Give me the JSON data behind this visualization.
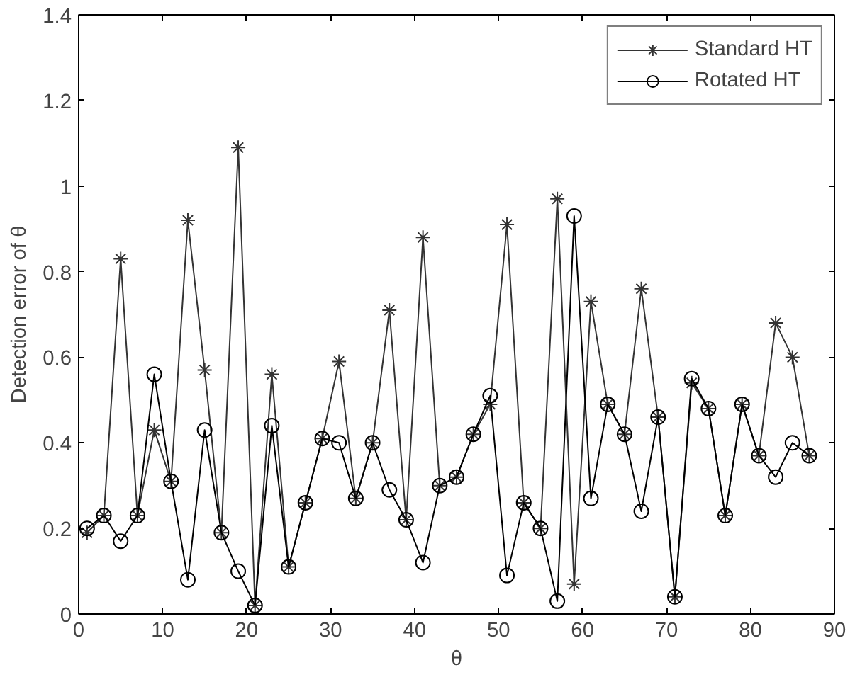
{
  "chart_data": {
    "type": "line",
    "xlabel": "θ",
    "ylabel": "Detection error of θ",
    "x": [
      1,
      3,
      5,
      7,
      9,
      11,
      13,
      15,
      17,
      19,
      21,
      23,
      25,
      27,
      29,
      31,
      33,
      35,
      37,
      39,
      41,
      43,
      45,
      47,
      49,
      51,
      53,
      55,
      57,
      59,
      61,
      63,
      65,
      67,
      69,
      71,
      73,
      75,
      77,
      79,
      81,
      83,
      85,
      87
    ],
    "series": [
      {
        "name": "Standard HT",
        "color": "#333333",
        "marker": "cross",
        "values": [
          0.19,
          0.23,
          0.83,
          0.23,
          0.43,
          0.31,
          0.92,
          0.57,
          0.19,
          1.09,
          0.02,
          0.56,
          0.11,
          0.26,
          0.41,
          0.59,
          0.27,
          0.4,
          0.71,
          0.22,
          0.88,
          0.3,
          0.32,
          0.42,
          0.49,
          0.91,
          0.26,
          0.2,
          0.97,
          0.07,
          0.73,
          0.49,
          0.42,
          0.76,
          0.46,
          0.04,
          0.54,
          0.48,
          0.23,
          0.49,
          0.37,
          0.68,
          0.6,
          0.37
        ]
      },
      {
        "name": "Rotated HT",
        "color": "#000000",
        "marker": "circle",
        "values": [
          0.2,
          0.23,
          0.17,
          0.23,
          0.56,
          0.31,
          0.08,
          0.43,
          0.19,
          0.1,
          0.02,
          0.44,
          0.11,
          0.26,
          0.41,
          0.4,
          0.27,
          0.4,
          0.29,
          0.22,
          0.12,
          0.3,
          0.32,
          0.42,
          0.51,
          0.09,
          0.26,
          0.2,
          0.03,
          0.93,
          0.27,
          0.49,
          0.42,
          0.24,
          0.46,
          0.04,
          0.55,
          0.48,
          0.23,
          0.49,
          0.37,
          0.32,
          0.4,
          0.37
        ]
      }
    ],
    "xlim": [
      0,
      90
    ],
    "ylim": [
      0,
      1.4
    ],
    "xticks": [
      0,
      10,
      20,
      30,
      40,
      50,
      60,
      70,
      80,
      90
    ],
    "yticks": [
      0,
      0.2,
      0.4,
      0.6,
      0.8,
      1,
      1.2,
      1.4
    ],
    "grid": false,
    "legend": "top right",
    "line_style": "solid"
  }
}
